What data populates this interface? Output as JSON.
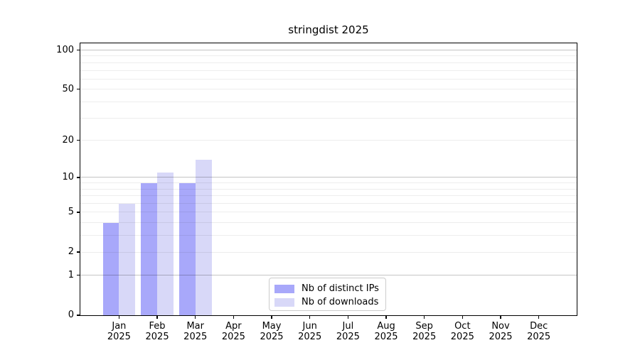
{
  "chart_data": {
    "type": "bar",
    "title": "stringdist 2025",
    "categories": [
      "Jan",
      "Feb",
      "Mar",
      "Apr",
      "May",
      "Jun",
      "Jul",
      "Aug",
      "Sep",
      "Oct",
      "Nov",
      "Dec"
    ],
    "year": "2025",
    "series": [
      {
        "name": "Nb of distinct IPs",
        "color": "#a8a8fa",
        "values": [
          4,
          9,
          9,
          null,
          null,
          null,
          null,
          null,
          null,
          null,
          null,
          null
        ]
      },
      {
        "name": "Nb of downloads",
        "color": "#d8d8f8",
        "values": [
          6,
          11,
          14,
          null,
          null,
          null,
          null,
          null,
          null,
          null,
          null,
          null
        ]
      }
    ],
    "yscale": "log1p",
    "yticks": [
      0,
      1,
      2,
      5,
      10,
      20,
      50,
      100
    ],
    "ylim": [
      0,
      113
    ],
    "grid": {
      "orientation": "horizontal",
      "major_lines": [
        1,
        10,
        100
      ],
      "minor_lines": [
        2,
        3,
        4,
        5,
        6,
        7,
        8,
        9,
        20,
        30,
        40,
        50,
        60,
        70,
        80,
        90
      ],
      "major_color": "#c4c4c4",
      "minor_color": "#ededed"
    },
    "legend": {
      "position": "lower center",
      "entries": [
        "Nb of distinct IPs",
        "Nb of downloads"
      ]
    }
  }
}
